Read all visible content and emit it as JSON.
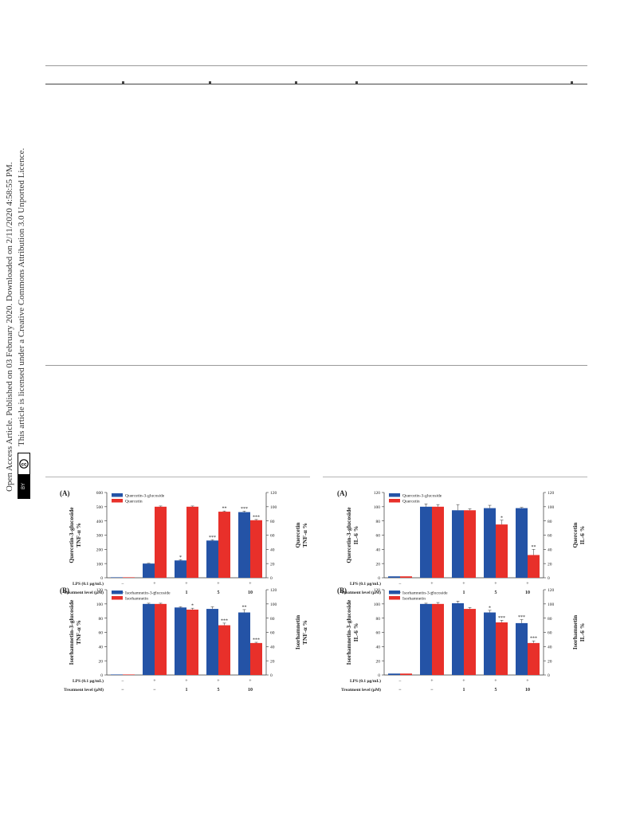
{
  "sidebar": {
    "line1": "Open Access Article. Published on 03 February 2020. Downloaded on 2/11/2020 4:58:55 PM.",
    "line2": "This article is licensed under a Creative Commons Attribution 3.0 Unported Licence.",
    "badge_cc": "cc",
    "badge_by": "BY"
  },
  "colors": {
    "blue": "#2453a6",
    "red": "#e8302a",
    "axis": "#333333"
  },
  "chart_data": [
    {
      "panel": "(A)",
      "type": "bar",
      "categories": [
        "",
        "",
        "",
        "",
        ""
      ],
      "rows": {
        "lps": {
          "label": "LPS (0.1 μg/mL)",
          "values": [
            "−",
            "+",
            "+",
            "+",
            "+"
          ]
        },
        "treatment": {
          "label": "Treatment level (μM)",
          "values": [
            "−",
            "−",
            "1",
            "5",
            "10"
          ]
        }
      },
      "ylabel_left": [
        "Quercetin-3-glucoside",
        "TNF-α %"
      ],
      "ylabel_right": [
        "Quercetin",
        "TNF-α %"
      ],
      "ylim_left": [
        0,
        600
      ],
      "yticks_left": [
        "0",
        "100",
        "200",
        "300",
        "400",
        "500",
        "600"
      ],
      "ylim_right": [
        0,
        120
      ],
      "yticks_right": [
        "0",
        "20",
        "40",
        "60",
        "80",
        "100",
        "120"
      ],
      "series": [
        {
          "name": "Quercetin-3-glucoside",
          "color": "#2453a6",
          "axis": "left",
          "values": [
            0,
            100,
            122,
            262,
            462
          ],
          "errors": [
            0,
            2,
            5,
            5,
            7
          ],
          "stars": [
            "",
            "",
            "*",
            "***",
            "***"
          ]
        },
        {
          "name": "Quercetin",
          "color": "#e8302a",
          "axis": "right",
          "values": [
            0,
            100,
            100,
            93,
            81
          ],
          "errors": [
            0,
            1,
            1,
            1,
            1
          ],
          "stars": [
            "",
            "",
            "",
            "**",
            "***"
          ]
        }
      ]
    },
    {
      "panel": "(A)",
      "type": "bar",
      "categories": [
        "",
        "",
        "",
        "",
        ""
      ],
      "rows": {
        "lps": {
          "label": "LPS (0.1 μg/mL)",
          "values": [
            "−",
            "+",
            "+",
            "+",
            "+"
          ]
        },
        "treatment": {
          "label": "Treatment level (μM)",
          "values": [
            "−",
            "−",
            "1",
            "5",
            "10"
          ]
        }
      },
      "ylabel_left": [
        "Quercetin-3-glucoside",
        "IL-6 %"
      ],
      "ylabel_right": [
        "Quercetin",
        "IL-6 %"
      ],
      "ylim_left": [
        0,
        120
      ],
      "yticks_left": [
        "0",
        "20",
        "40",
        "60",
        "80",
        "100",
        "120"
      ],
      "ylim_right": [
        0,
        120
      ],
      "yticks_right": [
        "0",
        "20",
        "40",
        "60",
        "80",
        "100",
        "120"
      ],
      "series": [
        {
          "name": "Quercetin-3-glucoside",
          "color": "#2453a6",
          "axis": "left",
          "values": [
            2,
            100,
            95,
            98,
            98
          ],
          "errors": [
            0,
            4,
            8,
            4,
            1
          ],
          "stars": [
            "",
            "",
            "",
            "",
            ""
          ]
        },
        {
          "name": "Quercetin",
          "color": "#e8302a",
          "axis": "right",
          "values": [
            2,
            100,
            95,
            75,
            32
          ],
          "errors": [
            0,
            3,
            2,
            6,
            8
          ],
          "stars": [
            "",
            "",
            "",
            "*",
            "**"
          ]
        }
      ]
    },
    {
      "panel": "(B)",
      "type": "bar",
      "categories": [
        "",
        "",
        "",
        "",
        ""
      ],
      "rows": {
        "lps": {
          "label": "LPS (0.1 μg/mL)",
          "values": [
            "−",
            "+",
            "+",
            "+",
            "+"
          ]
        },
        "treatment": {
          "label": "Treatment level (μM)",
          "values": [
            "−",
            "−",
            "1",
            "5",
            "10"
          ]
        }
      },
      "ylabel_left": [
        "Isorhamnetin-3-glucoside",
        "TNF-α %"
      ],
      "ylabel_right": [
        "Isorhamnetin",
        "TNF-α %"
      ],
      "ylim_left": [
        0,
        120
      ],
      "yticks_left": [
        "0",
        "20",
        "40",
        "60",
        "80",
        "100",
        "120"
      ],
      "ylim_right": [
        0,
        120
      ],
      "yticks_right": [
        "0",
        "20",
        "40",
        "60",
        "80",
        "100",
        "120"
      ],
      "series": [
        {
          "name": "Isorhamnetin-3-glucoside",
          "color": "#2453a6",
          "axis": "left",
          "values": [
            0,
            100,
            95,
            93,
            88
          ],
          "errors": [
            0,
            1,
            1,
            3,
            4
          ],
          "stars": [
            "",
            "",
            "",
            "",
            "**"
          ]
        },
        {
          "name": "Isorhamnetin",
          "color": "#e8302a",
          "axis": "right",
          "values": [
            0,
            100,
            92,
            70,
            45
          ],
          "errors": [
            0,
            1,
            2,
            3,
            1
          ],
          "stars": [
            "",
            "",
            "*",
            "***",
            "***"
          ]
        }
      ]
    },
    {
      "panel": "(B)",
      "type": "bar",
      "categories": [
        "",
        "",
        "",
        "",
        ""
      ],
      "rows": {
        "lps": {
          "label": "LPS (0.1 μg/mL)",
          "values": [
            "−",
            "+",
            "+",
            "+",
            "+"
          ]
        },
        "treatment": {
          "label": "Treatment level (μM)",
          "values": [
            "−",
            "−",
            "1",
            "5",
            "10"
          ]
        }
      },
      "ylabel_left": [
        "Isorhamnetin-3-glucoside",
        "IL-6 %"
      ],
      "ylabel_right": [
        "Isorhamnetin",
        "IL-6 %"
      ],
      "ylim_left": [
        0,
        120
      ],
      "yticks_left": [
        "0",
        "20",
        "40",
        "60",
        "80",
        "100",
        "120"
      ],
      "ylim_right": [
        0,
        120
      ],
      "yticks_right": [
        "0",
        "20",
        "40",
        "60",
        "80",
        "100",
        "120"
      ],
      "series": [
        {
          "name": "Isorhamnetin-3-glucoside",
          "color": "#2453a6",
          "axis": "left",
          "values": [
            2,
            100,
            101,
            88,
            73
          ],
          "errors": [
            0,
            1,
            3,
            3,
            5
          ],
          "stars": [
            "",
            "",
            "",
            "*",
            "***"
          ]
        },
        {
          "name": "Isorhamnetin",
          "color": "#e8302a",
          "axis": "right",
          "values": [
            2,
            100,
            93,
            74,
            45
          ],
          "errors": [
            0,
            2,
            2,
            3,
            3
          ],
          "stars": [
            "",
            "",
            "",
            "***",
            "***"
          ]
        }
      ]
    }
  ]
}
